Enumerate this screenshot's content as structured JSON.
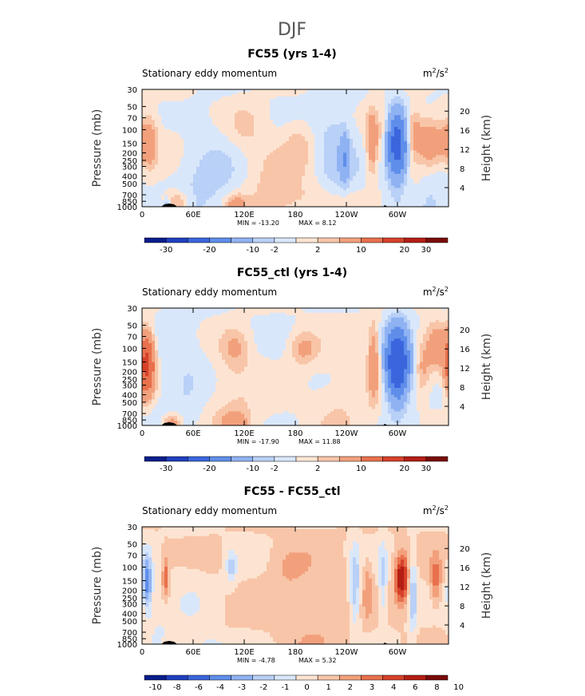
{
  "figure_title": "DJF",
  "colors": {
    "contour": [
      "#0a1e8c",
      "#1f3fbf",
      "#3a66dd",
      "#5f8eea",
      "#8fb2f2",
      "#b9d0f7",
      "#d9e7fb",
      "#fde4d2",
      "#f8c5a8",
      "#f2a07c",
      "#e8704d",
      "#d6412a",
      "#b41e14",
      "#7a0a0a"
    ],
    "topography": "#000000"
  },
  "chart_data": [
    {
      "type": "heatmap",
      "title": "FC55 (yrs 1-4)",
      "field_label": "Stationary eddy momentum",
      "units": "m²/s²",
      "units_base": "m",
      "units_sup1": "2",
      "units_mid": "/s",
      "units_sup2": "2",
      "ylabel_left": "Pressure (mb)",
      "ylabel_right": "Height (km)",
      "x_ticks": [
        "0",
        "60E",
        "120E",
        "180",
        "120W",
        "60W"
      ],
      "y_ticks": [
        "30",
        "50",
        "70",
        "100",
        "150",
        "200",
        "250",
        "300",
        "400",
        "500",
        "700",
        "850",
        "1000"
      ],
      "height_ticks": [
        "20",
        "16",
        "12",
        "8",
        "4"
      ],
      "min_label": "MIN = -13.20",
      "max_label": "MAX = 8.12",
      "colorbar_labels": [
        "-30",
        "-20",
        "-10",
        "-2",
        "2",
        "10",
        "20",
        "30"
      ],
      "blobs": [
        {
          "lon": 0,
          "p": 150,
          "v": 3.2,
          "slon": 10,
          "sp": 0.1
        },
        {
          "lon": 10,
          "p": 150,
          "v": 2.8,
          "slon": 8,
          "sp": 0.12
        },
        {
          "lon": 42,
          "p": 110,
          "v": 0.9,
          "slon": 35,
          "sp": 0.18
        },
        {
          "lon": 70,
          "p": 400,
          "v": -1.4,
          "slon": 45,
          "sp": 0.3
        },
        {
          "lon": 120,
          "p": 90,
          "v": 1.0,
          "slon": 20,
          "sp": 0.12
        },
        {
          "lon": 185,
          "p": 150,
          "v": 1.4,
          "slon": 18,
          "sp": 0.12
        },
        {
          "lon": 150,
          "p": 500,
          "v": 1.2,
          "slon": 35,
          "sp": 0.25
        },
        {
          "lon": 228,
          "p": 170,
          "v": -1.6,
          "slon": 25,
          "sp": 0.3
        },
        {
          "lon": 238,
          "p": 240,
          "v": -3.5,
          "slon": 5,
          "sp": 0.12
        },
        {
          "lon": 283,
          "p": 110,
          "v": 1.5,
          "slon": 16,
          "sp": 0.12
        },
        {
          "lon": 270,
          "p": 150,
          "v": 3.2,
          "slon": 6,
          "sp": 0.16
        },
        {
          "lon": 300,
          "p": 150,
          "v": -13.2,
          "slon": 11,
          "sp": 0.14
        },
        {
          "lon": 298,
          "p": 240,
          "v": -1.8,
          "slon": 13,
          "sp": 0.2
        },
        {
          "lon": 318,
          "p": 110,
          "v": 3.5,
          "slon": 13,
          "sp": 0.12
        },
        {
          "lon": 340,
          "p": 150,
          "v": 4.0,
          "slon": 12,
          "sp": 0.12
        },
        {
          "lon": 340,
          "p": 500,
          "v": -1.0,
          "slon": 15,
          "sp": 0.3
        },
        {
          "lon": 30,
          "p": 980,
          "v": -3.0,
          "slon": 4,
          "sp": 0.04
        },
        {
          "lon": 40,
          "p": 900,
          "v": 3.0,
          "slon": 15,
          "sp": 0.06
        },
        {
          "lon": 110,
          "p": 920,
          "v": 2.8,
          "slon": 12,
          "sp": 0.05
        },
        {
          "lon": 200,
          "p": 850,
          "v": 1.0,
          "slon": 60,
          "sp": 0.1
        }
      ]
    },
    {
      "type": "heatmap",
      "title": "FC55_ctl (yrs 1-4)",
      "field_label": "Stationary eddy momentum",
      "units": "m²/s²",
      "units_base": "m",
      "units_sup1": "2",
      "units_mid": "/s",
      "units_sup2": "2",
      "ylabel_left": "Pressure (mb)",
      "ylabel_right": "Height (km)",
      "x_ticks": [
        "0",
        "60E",
        "120E",
        "180",
        "120W",
        "60W"
      ],
      "y_ticks": [
        "30",
        "50",
        "70",
        "100",
        "150",
        "200",
        "250",
        "300",
        "400",
        "500",
        "700",
        "850",
        "1000"
      ],
      "height_ticks": [
        "20",
        "16",
        "12",
        "8",
        "4"
      ],
      "min_label": "MIN = -17.90",
      "max_label": "MAX = 11.88",
      "colorbar_labels": [
        "-30",
        "-20",
        "-10",
        "-2",
        "2",
        "10",
        "20",
        "30"
      ],
      "blobs": [
        {
          "lon": 5,
          "p": 160,
          "v": 11.9,
          "slon": 9,
          "sp": 0.14
        },
        {
          "lon": 50,
          "p": 400,
          "v": -1.2,
          "slon": 35,
          "sp": 0.35
        },
        {
          "lon": 110,
          "p": 100,
          "v": 2.0,
          "slon": 16,
          "sp": 0.1
        },
        {
          "lon": 190,
          "p": 100,
          "v": 2.5,
          "slon": 16,
          "sp": 0.08
        },
        {
          "lon": 100,
          "p": 600,
          "v": 1.3,
          "slon": 40,
          "sp": 0.25
        },
        {
          "lon": 272,
          "p": 150,
          "v": 3.5,
          "slon": 7,
          "sp": 0.2
        },
        {
          "lon": 300,
          "p": 150,
          "v": -17.9,
          "slon": 12,
          "sp": 0.15
        },
        {
          "lon": 300,
          "p": 260,
          "v": -2.0,
          "slon": 12,
          "sp": 0.15
        },
        {
          "lon": 345,
          "p": 100,
          "v": 3.0,
          "slon": 12,
          "sp": 0.12
        },
        {
          "lon": 330,
          "p": 180,
          "v": 2.0,
          "slon": 8,
          "sp": 0.12
        },
        {
          "lon": 35,
          "p": 940,
          "v": 3.5,
          "slon": 12,
          "sp": 0.05
        },
        {
          "lon": 110,
          "p": 930,
          "v": 3.0,
          "slon": 14,
          "sp": 0.05
        },
        {
          "lon": 230,
          "p": 600,
          "v": 1.0,
          "slon": 30,
          "sp": 0.2
        }
      ]
    },
    {
      "type": "heatmap",
      "title": "FC55 - FC55_ctl",
      "field_label": "Stationary eddy momentum",
      "units": "m²/s²",
      "units_base": "m",
      "units_sup1": "2",
      "units_mid": "/s",
      "units_sup2": "2",
      "ylabel_left": "Pressure (mb)",
      "ylabel_right": "Height (km)",
      "x_ticks": [
        "0",
        "60E",
        "120E",
        "180",
        "120W",
        "60W"
      ],
      "y_ticks": [
        "30",
        "50",
        "70",
        "100",
        "150",
        "200",
        "250",
        "300",
        "400",
        "500",
        "700",
        "850",
        "1000"
      ],
      "height_ticks": [
        "20",
        "16",
        "12",
        "8",
        "4"
      ],
      "min_label": "MIN = -4.78",
      "max_label": "MAX = 5.32",
      "colorbar_labels": [
        "-10",
        "-8",
        "-6",
        "-4",
        "-3",
        "-2",
        "-1",
        "0",
        "1",
        "2",
        "3",
        "4",
        "6",
        "8",
        "10"
      ],
      "blobs": [
        {
          "lon": 6,
          "p": 160,
          "v": -4.8,
          "slon": 6,
          "sp": 0.14
        },
        {
          "lon": 28,
          "p": 140,
          "v": 3.0,
          "slon": 4,
          "sp": 0.1
        },
        {
          "lon": 55,
          "p": 300,
          "v": -0.6,
          "slon": 25,
          "sp": 0.3
        },
        {
          "lon": 105,
          "p": 100,
          "v": -2.5,
          "slon": 6,
          "sp": 0.08
        },
        {
          "lon": 170,
          "p": 100,
          "v": 0.9,
          "slon": 22,
          "sp": 0.12
        },
        {
          "lon": 250,
          "p": 180,
          "v": -3.0,
          "slon": 6,
          "sp": 0.2
        },
        {
          "lon": 265,
          "p": 180,
          "v": 1.6,
          "slon": 5,
          "sp": 0.15
        },
        {
          "lon": 283,
          "p": 160,
          "v": -2.2,
          "slon": 5,
          "sp": 0.2
        },
        {
          "lon": 305,
          "p": 140,
          "v": 5.3,
          "slon": 8,
          "sp": 0.12
        },
        {
          "lon": 318,
          "p": 220,
          "v": -2.8,
          "slon": 5,
          "sp": 0.2
        },
        {
          "lon": 345,
          "p": 150,
          "v": 2.6,
          "slon": 6,
          "sp": 0.12
        },
        {
          "lon": 200,
          "p": 500,
          "v": 0.8,
          "slon": 40,
          "sp": 0.3
        },
        {
          "lon": 20,
          "p": 700,
          "v": -1.0,
          "slon": 15,
          "sp": 0.15
        },
        {
          "lon": 80,
          "p": 980,
          "v": -1.5,
          "slon": 20,
          "sp": 0.03
        }
      ]
    }
  ]
}
